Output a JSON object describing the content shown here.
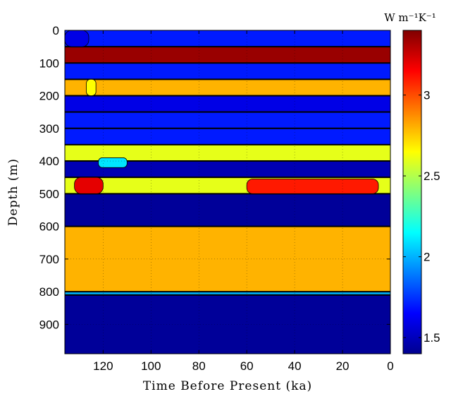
{
  "chart_data": {
    "type": "heatmap",
    "title": "",
    "xlabel": "Time Before Present (ka)",
    "ylabel": "Depth (m)",
    "xlim": [
      136,
      0
    ],
    "ylim": [
      0,
      990
    ],
    "x_reversed": true,
    "y_reversed": true,
    "x_ticks": [
      120,
      100,
      80,
      60,
      40,
      20,
      0
    ],
    "y_ticks": [
      0,
      100,
      200,
      300,
      400,
      500,
      600,
      700,
      800,
      900
    ],
    "grid": true,
    "grid_style": "dotted",
    "colorbar": {
      "label": "W m⁻¹K⁻¹",
      "range": [
        1.4,
        3.4
      ],
      "ticks": [
        1.5,
        2,
        2.5,
        3
      ],
      "colormap": "jet"
    },
    "layers": [
      {
        "top": 0,
        "bottom": 50,
        "value": 1.7
      },
      {
        "top": 50,
        "bottom": 100,
        "value": 3.35
      },
      {
        "top": 100,
        "bottom": 150,
        "value": 1.7
      },
      {
        "top": 150,
        "bottom": 200,
        "value": 2.8
      },
      {
        "top": 200,
        "bottom": 250,
        "value": 1.6
      },
      {
        "top": 250,
        "bottom": 300,
        "value": 1.7
      },
      {
        "top": 300,
        "bottom": 350,
        "value": 1.7
      },
      {
        "top": 350,
        "bottom": 400,
        "value": 2.6
      },
      {
        "top": 400,
        "bottom": 450,
        "value": 1.5
      },
      {
        "top": 450,
        "bottom": 500,
        "value": 2.6
      },
      {
        "top": 500,
        "bottom": 600,
        "value": 1.45
      },
      {
        "top": 600,
        "bottom": 800,
        "value": 2.8
      },
      {
        "top": 800,
        "bottom": 810,
        "value": 2.0
      },
      {
        "top": 810,
        "bottom": 990,
        "value": 1.45
      }
    ],
    "anomalies": [
      {
        "x_range": [
          136,
          126
        ],
        "depth_range": [
          0,
          50
        ],
        "value": 1.6
      },
      {
        "x_range": [
          127,
          123
        ],
        "depth_range": [
          150,
          200
        ],
        "value": 2.65
      },
      {
        "x_range": [
          132,
          120
        ],
        "depth_range": [
          450,
          500
        ],
        "value": 3.2
      },
      {
        "x_range": [
          122,
          110
        ],
        "depth_range": [
          390,
          420
        ],
        "value": 2.1
      },
      {
        "x_range": [
          60,
          5
        ],
        "depth_range": [
          455,
          500
        ],
        "value": 3.1
      }
    ]
  }
}
